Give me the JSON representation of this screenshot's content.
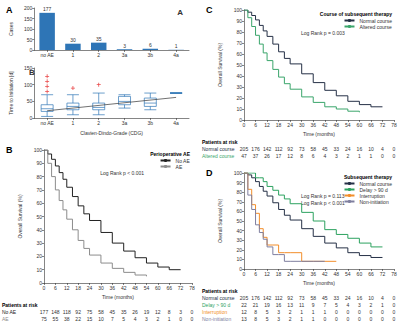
{
  "chart_data": [
    {
      "type": "bar",
      "title": "A",
      "annotations": [
        "A"
      ],
      "categories": [
        "no AE",
        "1",
        "2",
        "3a",
        "3b",
        "4a"
      ],
      "values": [
        177,
        30,
        35,
        3,
        6,
        1
      ],
      "data_labels": true,
      "color": "#2e75b6",
      "ylabel": "Cases",
      "ylim": [
        0,
        200
      ],
      "yticks": [
        0,
        50,
        100,
        150,
        200
      ]
    },
    {
      "type": "boxplot",
      "annotations": [
        "B"
      ],
      "categories": [
        "no AE",
        "1",
        "2",
        "3a",
        "3b",
        "4a"
      ],
      "boxes": [
        [
          5,
          20,
          28,
          40,
          70
        ],
        [
          10,
          25,
          35,
          45,
          70
        ],
        [
          10,
          25,
          32,
          45,
          75
        ],
        [
          30,
          40,
          50,
          65,
          70
        ],
        [
          25,
          35,
          45,
          60,
          75
        ],
        [
          75,
          75,
          75,
          75,
          75
        ]
      ],
      "outliers": [
        [
          80,
          95,
          110,
          125
        ],
        [
          90
        ],
        [
          100
        ],
        [],
        [],
        []
      ],
      "trend_line": [
        22,
        62
      ],
      "color": "#2e75b6",
      "xlabel": "Clavien-Dindo-Grade (CDG)",
      "ylabel": "Time to Initiation [d]",
      "ylim": [
        0,
        150
      ],
      "yticks": [
        0,
        50,
        100,
        150
      ]
    },
    {
      "type": "line",
      "line_style": "step",
      "title": "B",
      "legend": "upper right",
      "legend_title": "Perioperative AE",
      "xlabel": "Time (months)",
      "ylabel": "Overall Survival (%)",
      "annotations": [
        "Log Rank p < 0.001"
      ],
      "xlim": [
        0,
        78
      ],
      "xticks": [
        0,
        6,
        12,
        18,
        24,
        30,
        36,
        42,
        48,
        54,
        60,
        66,
        72,
        78
      ],
      "ylim": [
        0,
        100
      ],
      "yticks": [
        0,
        10,
        20,
        30,
        40,
        50,
        60,
        70,
        80,
        90,
        100
      ],
      "series": [
        {
          "name": "No AE",
          "color": "#222222",
          "x": [
            0,
            2,
            4,
            6,
            8,
            10,
            12,
            15,
            18,
            21,
            24,
            30,
            36,
            42,
            48,
            54,
            60,
            66,
            72
          ],
          "values": [
            100,
            97,
            93,
            88,
            83,
            78,
            72,
            65,
            58,
            52,
            47,
            38,
            30,
            24,
            19,
            15,
            12,
            10,
            10
          ]
        },
        {
          "name": "AE",
          "color": "#8c8c8c",
          "x": [
            0,
            2,
            4,
            6,
            8,
            10,
            12,
            15,
            18,
            21,
            24,
            30,
            36,
            42,
            48,
            54
          ],
          "values": [
            100,
            90,
            80,
            70,
            62,
            55,
            48,
            40,
            32,
            26,
            21,
            15,
            11,
            8,
            6,
            5
          ]
        }
      ],
      "at_risk": {
        "title": "Patients at risk",
        "x": [
          0,
          6,
          12,
          18,
          24,
          30,
          36,
          42,
          48,
          54,
          60,
          66,
          72,
          78
        ],
        "rows": [
          {
            "name": "No AE",
            "values": [
              177,
              148,
              118,
              92,
              75,
              58,
              45,
              35,
              26,
              19,
              12,
              8,
              3,
              0
            ]
          },
          {
            "name": "AE",
            "values": [
              75,
              55,
              38,
              22,
              15,
              10,
              7,
              5,
              4,
              3,
              2,
              1,
              0,
              0
            ]
          }
        ]
      }
    },
    {
      "type": "line",
      "line_style": "step",
      "title": "C",
      "legend": "upper right",
      "legend_title": "Course of subsequent therapy",
      "xlabel": "Time (months)",
      "ylabel": "Overall Survival (%)",
      "annotations": [
        "Log Rank p = 0.003"
      ],
      "xlim": [
        0,
        78
      ],
      "xticks": [
        0,
        6,
        12,
        18,
        24,
        30,
        36,
        42,
        48,
        54,
        60,
        66,
        72,
        78
      ],
      "ylim": [
        0,
        100
      ],
      "yticks": [
        0,
        10,
        20,
        30,
        40,
        50,
        60,
        70,
        80,
        90,
        100
      ],
      "series": [
        {
          "name": "Normal course",
          "color": "#253046",
          "x": [
            0,
            2,
            4,
            6,
            8,
            10,
            12,
            15,
            18,
            21,
            24,
            30,
            36,
            42,
            48,
            54,
            60,
            66,
            72
          ],
          "values": [
            100,
            98,
            95,
            91,
            86,
            81,
            76,
            69,
            62,
            56,
            51,
            42,
            34,
            27,
            22,
            17,
            14,
            12,
            12
          ]
        },
        {
          "name": "Altered course",
          "color": "#3aa56b",
          "x": [
            0,
            2,
            4,
            6,
            8,
            10,
            12,
            15,
            18,
            21,
            24,
            30,
            36,
            42,
            48,
            54,
            60
          ],
          "values": [
            100,
            93,
            85,
            77,
            69,
            61,
            54,
            46,
            39,
            33,
            28,
            21,
            16,
            12,
            10,
            8,
            7
          ]
        }
      ],
      "at_risk": {
        "title": "Patients at risk",
        "x": [
          0,
          6,
          12,
          18,
          24,
          30,
          36,
          42,
          48,
          54,
          60,
          66,
          72,
          78
        ],
        "rows": [
          {
            "name": "Normal course",
            "values": [
              205,
              176,
              142,
              112,
              92,
              73,
              58,
              45,
              33,
              24,
              16,
              10,
              4,
              0
            ]
          },
          {
            "name": "Altered course",
            "values": [
              47,
              37,
              26,
              17,
              12,
              8,
              6,
              4,
              3,
              2,
              1,
              1,
              0,
              0
            ]
          }
        ]
      }
    },
    {
      "type": "line",
      "line_style": "step",
      "title": "D",
      "legend": "upper right",
      "legend_title": "Subsequent therapy",
      "xlabel": "Time (months)",
      "ylabel": "Overall Survival (%)",
      "annotations": [
        "Log Rank p = 0.113",
        "Log Rank p < 0.001"
      ],
      "xlim": [
        0,
        78
      ],
      "xticks": [
        0,
        6,
        12,
        18,
        24,
        30,
        36,
        42,
        48,
        54,
        60,
        66,
        72,
        78
      ],
      "ylim": [
        0,
        100
      ],
      "yticks": [
        0,
        10,
        20,
        30,
        40,
        50,
        60,
        70,
        80,
        90,
        100
      ],
      "series": [
        {
          "name": "Normal course",
          "color": "#253046",
          "x": [
            0,
            2,
            4,
            6,
            8,
            10,
            12,
            15,
            18,
            21,
            24,
            30,
            36,
            42,
            48,
            54,
            60,
            66,
            72
          ],
          "values": [
            100,
            98,
            95,
            91,
            86,
            81,
            76,
            69,
            62,
            56,
            51,
            42,
            34,
            27,
            22,
            17,
            14,
            12,
            12
          ]
        },
        {
          "name": "Delay > 90 d",
          "color": "#2ca25f",
          "x": [
            0,
            2,
            4,
            6,
            8,
            10,
            12,
            15,
            18,
            21,
            24,
            30,
            36,
            42,
            48,
            54,
            60,
            66,
            72
          ],
          "values": [
            100,
            100,
            100,
            95,
            95,
            91,
            86,
            82,
            77,
            73,
            68,
            59,
            50,
            41,
            36,
            32,
            27,
            23,
            23
          ]
        },
        {
          "name": "Interruption",
          "color": "#f28e2b",
          "x": [
            0,
            2,
            4,
            6,
            8,
            10,
            12,
            15,
            18,
            21,
            24,
            30,
            36,
            42,
            48
          ],
          "values": [
            100,
            83,
            67,
            58,
            42,
            33,
            25,
            25,
            17,
            17,
            17,
            8,
            8,
            8,
            8
          ]
        },
        {
          "name": "Non-initiation",
          "color": "#7f7f9f",
          "x": [
            0,
            2,
            4,
            6,
            8,
            10,
            12,
            15,
            18,
            21,
            24,
            30,
            36,
            42
          ],
          "values": [
            100,
            77,
            62,
            46,
            38,
            31,
            23,
            15,
            15,
            8,
            8,
            8,
            8,
            8
          ]
        }
      ],
      "at_risk": {
        "title": "Patients at risk",
        "x": [
          0,
          6,
          12,
          18,
          24,
          30,
          36,
          42,
          48,
          54,
          60,
          66,
          72,
          78
        ],
        "rows": [
          {
            "name": "Normal course",
            "values": [
              205,
              176,
              142,
              112,
              92,
              73,
              58,
              45,
              33,
              24,
              16,
              10,
              4,
              0
            ]
          },
          {
            "name": "Delay > 90 d",
            "values": [
              22,
              21,
              19,
              16,
              13,
              11,
              9,
              7,
              5,
              4,
              3,
              2,
              1,
              0
            ]
          },
          {
            "name": "Interruption",
            "values": [
              12,
              8,
              5,
              3,
              2,
              1,
              1,
              1,
              0,
              0,
              0,
              0,
              0,
              0
            ]
          },
          {
            "name": "Non-initiation",
            "values": [
              13,
              8,
              5,
              3,
              2,
              1,
              1,
              0,
              0,
              0,
              0,
              0,
              0,
              0
            ]
          }
        ]
      }
    }
  ]
}
